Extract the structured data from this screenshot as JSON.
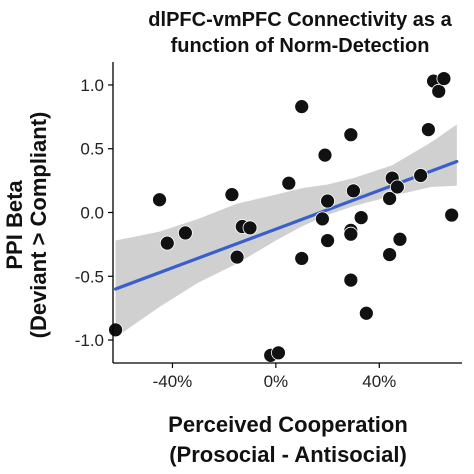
{
  "chart_data": {
    "type": "scatter",
    "title_lines": [
      "dlPFC-vmPFC Connectivity as a",
      "function of Norm-Detection"
    ],
    "xlabel_lines": [
      "Perceived Cooperation",
      "(Prosocial - Antisocial)"
    ],
    "ylabel_lines": [
      "PPI Beta",
      "(Deviant > Compliant)"
    ],
    "xlim": [
      -0.63,
      0.72
    ],
    "ylim": [
      -1.18,
      1.18
    ],
    "x_ticks": [
      -0.4,
      0.0,
      0.4
    ],
    "x_tick_labels": [
      "-40%",
      "0%",
      "40%"
    ],
    "y_ticks": [
      1.0,
      0.5,
      0.0,
      -0.5,
      -1.0
    ],
    "y_tick_labels": [
      "1.0",
      "0.5",
      "0.0",
      "-0.5",
      "-1.0"
    ],
    "grid": false,
    "legend": "none",
    "points": [
      {
        "x": -0.62,
        "y": -0.92
      },
      {
        "x": -0.45,
        "y": 0.1
      },
      {
        "x": -0.42,
        "y": -0.24
      },
      {
        "x": -0.35,
        "y": -0.16
      },
      {
        "x": -0.17,
        "y": 0.14
      },
      {
        "x": -0.15,
        "y": -0.35
      },
      {
        "x": -0.13,
        "y": -0.11
      },
      {
        "x": -0.1,
        "y": -0.12
      },
      {
        "x": -0.02,
        "y": -1.12
      },
      {
        "x": 0.01,
        "y": -1.1
      },
      {
        "x": 0.05,
        "y": 0.23
      },
      {
        "x": 0.1,
        "y": 0.83
      },
      {
        "x": 0.1,
        "y": -0.36
      },
      {
        "x": 0.18,
        "y": -0.05
      },
      {
        "x": 0.19,
        "y": 0.45
      },
      {
        "x": 0.2,
        "y": 0.09
      },
      {
        "x": 0.2,
        "y": -0.22
      },
      {
        "x": 0.29,
        "y": 0.61
      },
      {
        "x": 0.29,
        "y": -0.14
      },
      {
        "x": 0.29,
        "y": -0.17
      },
      {
        "x": 0.29,
        "y": -0.53
      },
      {
        "x": 0.3,
        "y": 0.17
      },
      {
        "x": 0.33,
        "y": -0.04
      },
      {
        "x": 0.35,
        "y": -0.79
      },
      {
        "x": 0.44,
        "y": 0.11
      },
      {
        "x": 0.45,
        "y": 0.27
      },
      {
        "x": 0.44,
        "y": -0.33
      },
      {
        "x": 0.47,
        "y": 0.2
      },
      {
        "x": 0.48,
        "y": -0.21
      },
      {
        "x": 0.56,
        "y": 0.29
      },
      {
        "x": 0.59,
        "y": 0.65
      },
      {
        "x": 0.61,
        "y": 1.03
      },
      {
        "x": 0.63,
        "y": 0.95
      },
      {
        "x": 0.65,
        "y": 1.05
      },
      {
        "x": 0.68,
        "y": -0.02
      }
    ],
    "fit_line": {
      "color": "#3a5fcd",
      "x": [
        -0.62,
        0.7
      ],
      "y": [
        -0.6,
        0.4
      ]
    },
    "confidence_band": {
      "color": "#c8c8c8",
      "x": [
        -0.62,
        -0.45,
        -0.3,
        -0.15,
        0.0,
        0.1,
        0.2,
        0.3,
        0.45,
        0.6,
        0.7
      ],
      "upper": [
        -0.22,
        -0.15,
        -0.05,
        0.07,
        0.14,
        0.19,
        0.22,
        0.27,
        0.37,
        0.55,
        0.69
      ],
      "lower": [
        -0.98,
        -0.74,
        -0.55,
        -0.4,
        -0.22,
        -0.11,
        -0.02,
        0.05,
        0.13,
        0.2,
        0.21
      ]
    },
    "point_color": "#111111"
  }
}
